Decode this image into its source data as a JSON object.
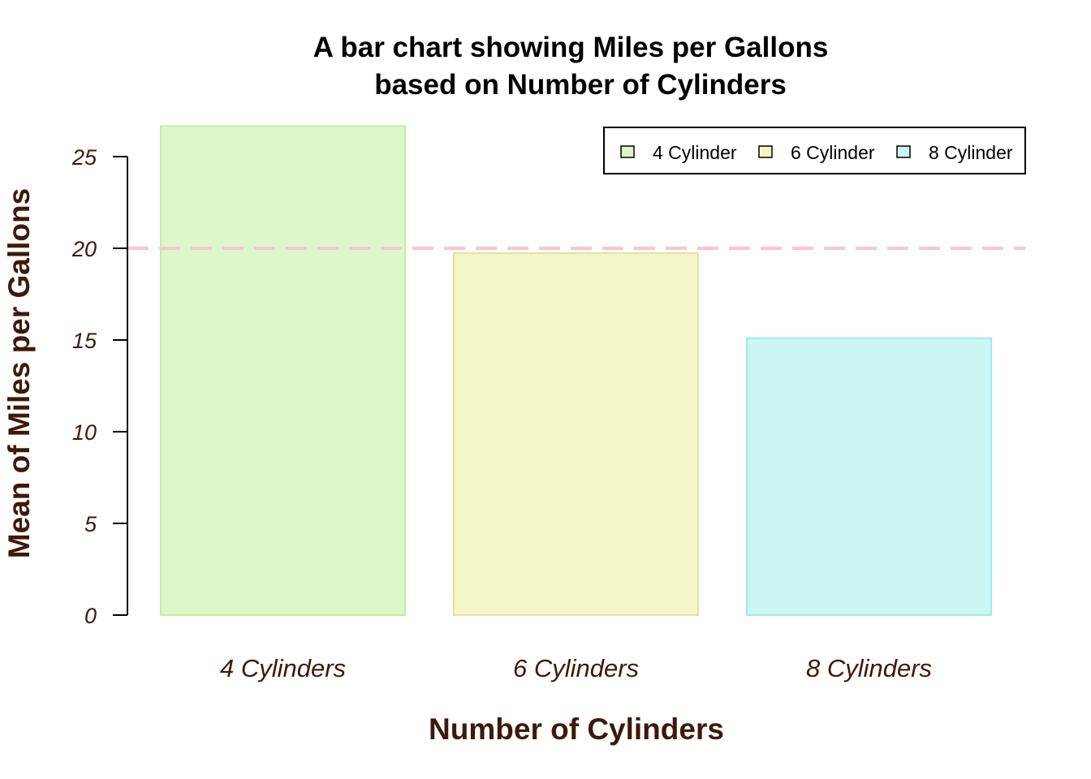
{
  "chart_data": {
    "type": "bar",
    "title_lines": [
      "A bar chart showing Miles per Gallons",
      "based on Number of Cylinders"
    ],
    "xlabel": "Number of Cylinders",
    "ylabel": "Mean of Miles per Gallons",
    "categories": [
      "4 Cylinders",
      "6 Cylinders",
      "8 Cylinders"
    ],
    "values": [
      26.66,
      19.74,
      15.1
    ],
    "bar_fill_colors": [
      "#ddf7cb",
      "#f4f6c9",
      "#cbf6f3"
    ],
    "bar_border_colors": [
      "#c4ef9a",
      "#e2e4a0",
      "#98eeea"
    ],
    "yticks": [
      0,
      5,
      10,
      15,
      20,
      25
    ],
    "ylim": [
      0,
      26.66
    ],
    "reference_line": {
      "y": 20,
      "style": "dashed",
      "color": "#f7c7d1"
    },
    "legend": {
      "position": "top-right",
      "entries": [
        "4 Cylinder",
        "6 Cylinder",
        "8 Cylinder"
      ],
      "colors": [
        "#ddf7cb",
        "#f4f6c9",
        "#cbf6f3"
      ]
    },
    "grid": false,
    "label_color": "#3d1a08"
  }
}
